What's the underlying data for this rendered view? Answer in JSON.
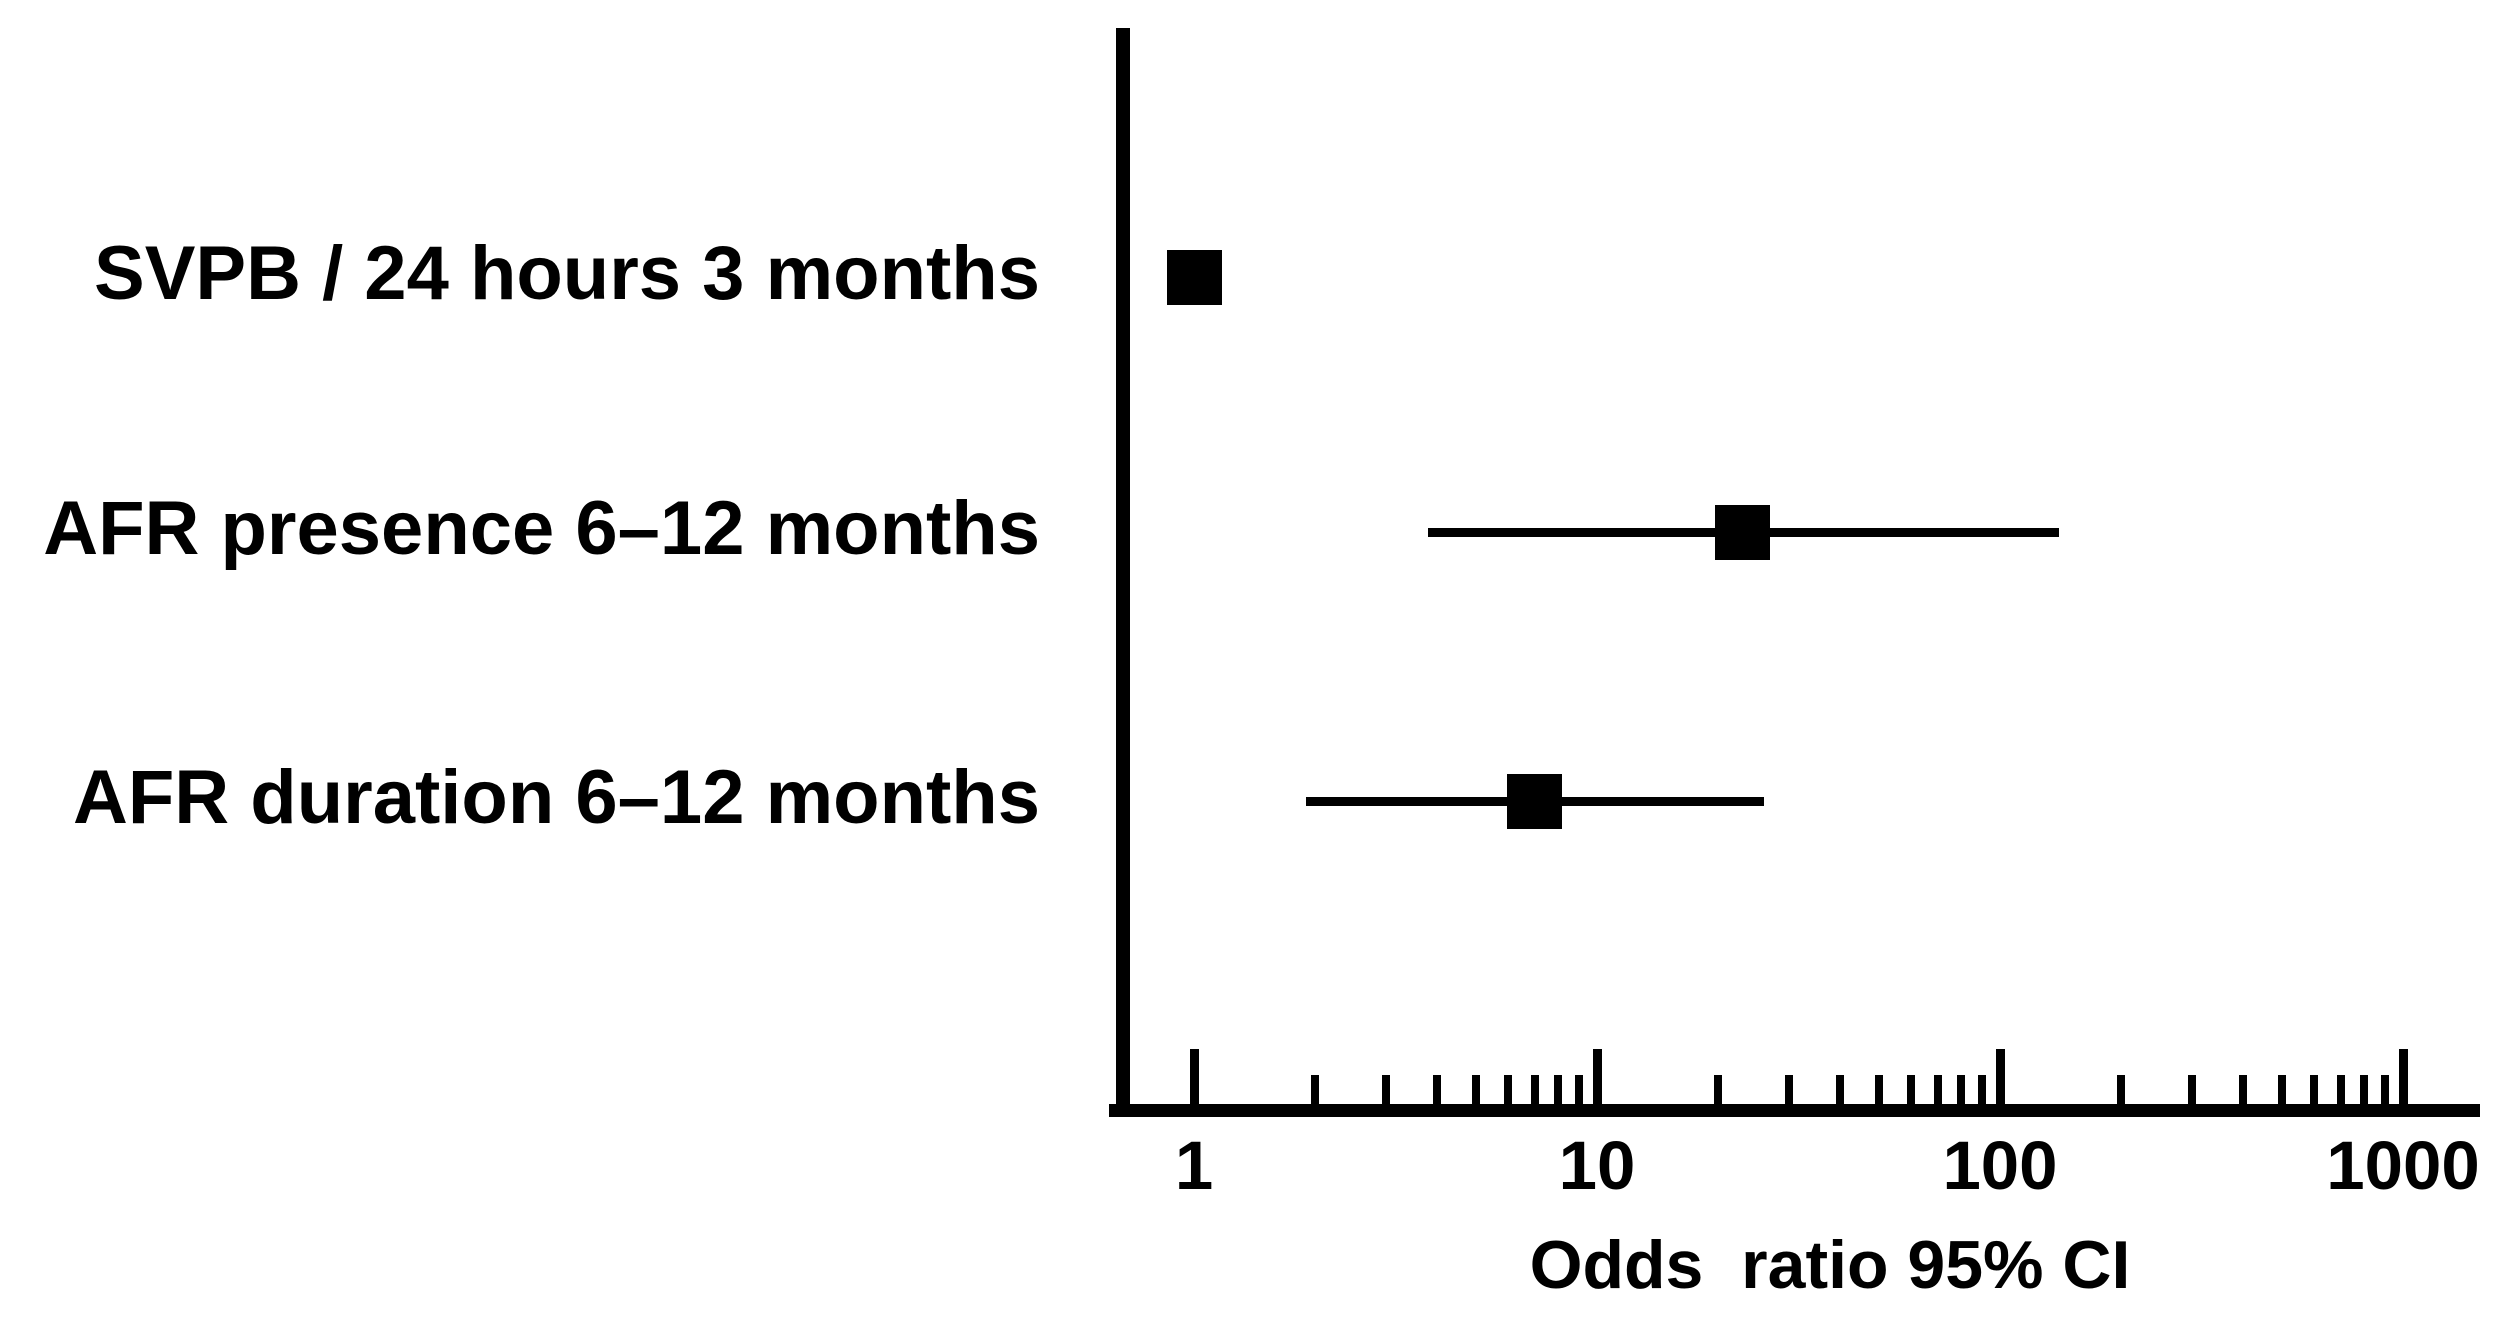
{
  "chart_data": {
    "type": "scatter",
    "variant": "forest-plot",
    "title": "",
    "x_axis": {
      "label": "Odds  ratio 95% CI",
      "scale": "log10",
      "ticks": [
        1,
        10,
        100,
        1000
      ],
      "tick_labels": [
        "1",
        "10",
        "100",
        "1000"
      ],
      "minor_ticks": [
        2,
        3,
        4,
        5,
        6,
        7,
        8,
        9,
        20,
        30,
        40,
        50,
        60,
        70,
        80,
        90,
        200,
        300,
        400,
        500,
        600,
        700,
        800,
        900
      ],
      "range_approx": [
        0.65,
        1500
      ]
    },
    "rows": [
      {
        "label": "SVPB / 24 hours 3 months",
        "or": 1.0,
        "ci_low": null,
        "ci_high": null
      },
      {
        "label": "AFR presence 6–12 months",
        "or": 23.0,
        "ci_low": 3.8,
        "ci_high": 140.0
      },
      {
        "label": "AFR duration 6–12 months",
        "or": 7.0,
        "ci_low": 1.9,
        "ci_high": 26.0
      }
    ],
    "legend": null,
    "grid": false,
    "marker": "filled-square",
    "note": "Horizontal lines show 95% confidence intervals; squares show point estimates of the odds ratio."
  },
  "colors": {
    "ink": "#000000",
    "background": "#ffffff"
  }
}
